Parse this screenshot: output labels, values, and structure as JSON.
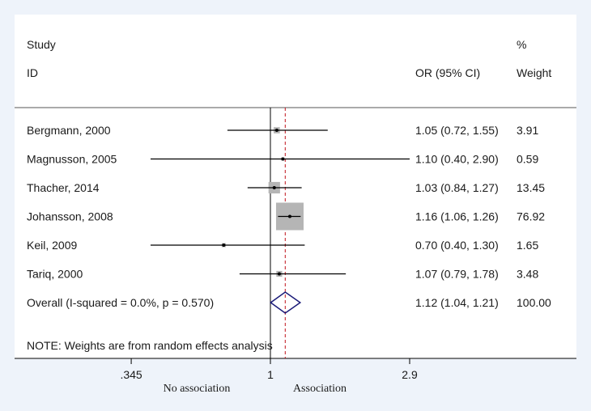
{
  "chart_data": {
    "type": "forest",
    "header": {
      "study": "Study",
      "id": "ID",
      "or_ci": "OR (95% CI)",
      "pct": "%",
      "weight": "Weight"
    },
    "studies": [
      {
        "label": "Bergmann, 2000",
        "or": 1.05,
        "lo": 0.72,
        "hi": 1.55,
        "or_text": "1.05 (0.72, 1.55)",
        "weight": 3.91,
        "weight_text": "3.91"
      },
      {
        "label": "Magnusson, 2005",
        "or": 1.1,
        "lo": 0.4,
        "hi": 2.9,
        "or_text": "1.10 (0.40, 2.90)",
        "weight": 0.59,
        "weight_text": "0.59"
      },
      {
        "label": "Thacher, 2014",
        "or": 1.03,
        "lo": 0.84,
        "hi": 1.27,
        "or_text": "1.03 (0.84, 1.27)",
        "weight": 13.45,
        "weight_text": "13.45"
      },
      {
        "label": "Johansson, 2008",
        "or": 1.16,
        "lo": 1.06,
        "hi": 1.26,
        "or_text": "1.16 (1.06, 1.26)",
        "weight": 76.92,
        "weight_text": "76.92"
      },
      {
        "label": "Keil, 2009",
        "or": 0.7,
        "lo": 0.4,
        "hi": 1.3,
        "or_text": "0.70 (0.40, 1.30)",
        "weight": 1.65,
        "weight_text": "1.65"
      },
      {
        "label": "Tariq, 2000",
        "or": 1.07,
        "lo": 0.79,
        "hi": 1.78,
        "or_text": "1.07 (0.79, 1.78)",
        "weight": 3.48,
        "weight_text": "3.48"
      }
    ],
    "overall": {
      "label": "Overall  (I-squared = 0.0%, p = 0.570)",
      "or": 1.12,
      "lo": 1.04,
      "hi": 1.21,
      "or_text": "1.12 (1.04, 1.21)",
      "weight_text": "100.00"
    },
    "note": "NOTE: Weights are from random effects analysis",
    "x_axis": {
      "scale": "log",
      "ticks": [
        0.345,
        1,
        2.9
      ],
      "tick_labels": [
        ".345",
        "1",
        "2.9"
      ]
    },
    "x_labels": {
      "left": "No association",
      "right": "Association"
    }
  },
  "colors": {
    "background": "#eef3fa",
    "panel": "#ffffff",
    "ci_line": "#000000",
    "weight_box": "#b5b5b5",
    "overall_line": "#c0141c",
    "diamond": "#1a1a78"
  }
}
